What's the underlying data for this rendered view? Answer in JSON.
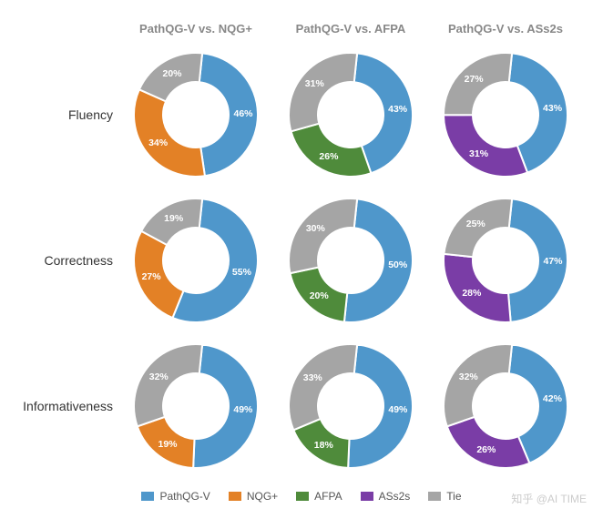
{
  "legend": [
    {
      "name": "PathQG-V",
      "color": "#4f97cb"
    },
    {
      "name": "NQG+",
      "color": "#e38126"
    },
    {
      "name": "AFPA",
      "color": "#4f8b3b"
    },
    {
      "name": "ASs2s",
      "color": "#7a3da6"
    },
    {
      "name": "Tie",
      "color": "#a5a5a5"
    }
  ],
  "columns": [
    "PathQG-V  vs. NQG+",
    "PathQG-V  vs. AFPA",
    "PathQG-V  vs. ASs2s"
  ],
  "rows": [
    "Fluency",
    "Correctness",
    "Informativeness"
  ],
  "charts": [
    [
      {
        "slices": [
          {
            "pct": 46,
            "color": "#4f97cb"
          },
          {
            "pct": 34,
            "color": "#e38126"
          },
          {
            "pct": 20,
            "color": "#a5a5a5"
          }
        ]
      },
      {
        "slices": [
          {
            "pct": 43,
            "color": "#4f97cb"
          },
          {
            "pct": 26,
            "color": "#4f8b3b"
          },
          {
            "pct": 31,
            "color": "#a5a5a5"
          }
        ]
      },
      {
        "slices": [
          {
            "pct": 43,
            "color": "#4f97cb"
          },
          {
            "pct": 31,
            "color": "#7a3da6"
          },
          {
            "pct": 27,
            "color": "#a5a5a5"
          }
        ]
      }
    ],
    [
      {
        "slices": [
          {
            "pct": 55,
            "color": "#4f97cb"
          },
          {
            "pct": 27,
            "color": "#e38126"
          },
          {
            "pct": 19,
            "color": "#a5a5a5"
          }
        ]
      },
      {
        "slices": [
          {
            "pct": 50,
            "color": "#4f97cb"
          },
          {
            "pct": 20,
            "color": "#4f8b3b"
          },
          {
            "pct": 30,
            "color": "#a5a5a5"
          }
        ]
      },
      {
        "slices": [
          {
            "pct": 47,
            "color": "#4f97cb"
          },
          {
            "pct": 28,
            "color": "#7a3da6"
          },
          {
            "pct": 25,
            "color": "#a5a5a5"
          }
        ]
      }
    ],
    [
      {
        "slices": [
          {
            "pct": 49,
            "color": "#4f97cb"
          },
          {
            "pct": 19,
            "color": "#e38126"
          },
          {
            "pct": 32,
            "color": "#a5a5a5"
          }
        ]
      },
      {
        "slices": [
          {
            "pct": 49,
            "color": "#4f97cb"
          },
          {
            "pct": 18,
            "color": "#4f8b3b"
          },
          {
            "pct": 33,
            "color": "#a5a5a5"
          }
        ]
      },
      {
        "slices": [
          {
            "pct": 42,
            "color": "#4f97cb"
          },
          {
            "pct": 26,
            "color": "#7a3da6"
          },
          {
            "pct": 32,
            "color": "#a5a5a5"
          }
        ]
      }
    ]
  ],
  "donut": {
    "size": 150,
    "outer_radius": 68,
    "inner_radius": 36,
    "stroke": "#ffffff",
    "stroke_width": 2,
    "start_angle_deg": 6,
    "label_radius": 52,
    "label_suffix": "%"
  },
  "watermark": "知乎 @AI TIME",
  "background_color": "#ffffff",
  "header_color": "#888888",
  "row_label_color": "#333333",
  "label_fontsize": 10.5,
  "header_fontsize": 13,
  "row_fontsize": 14,
  "legend_fontsize": 12
}
